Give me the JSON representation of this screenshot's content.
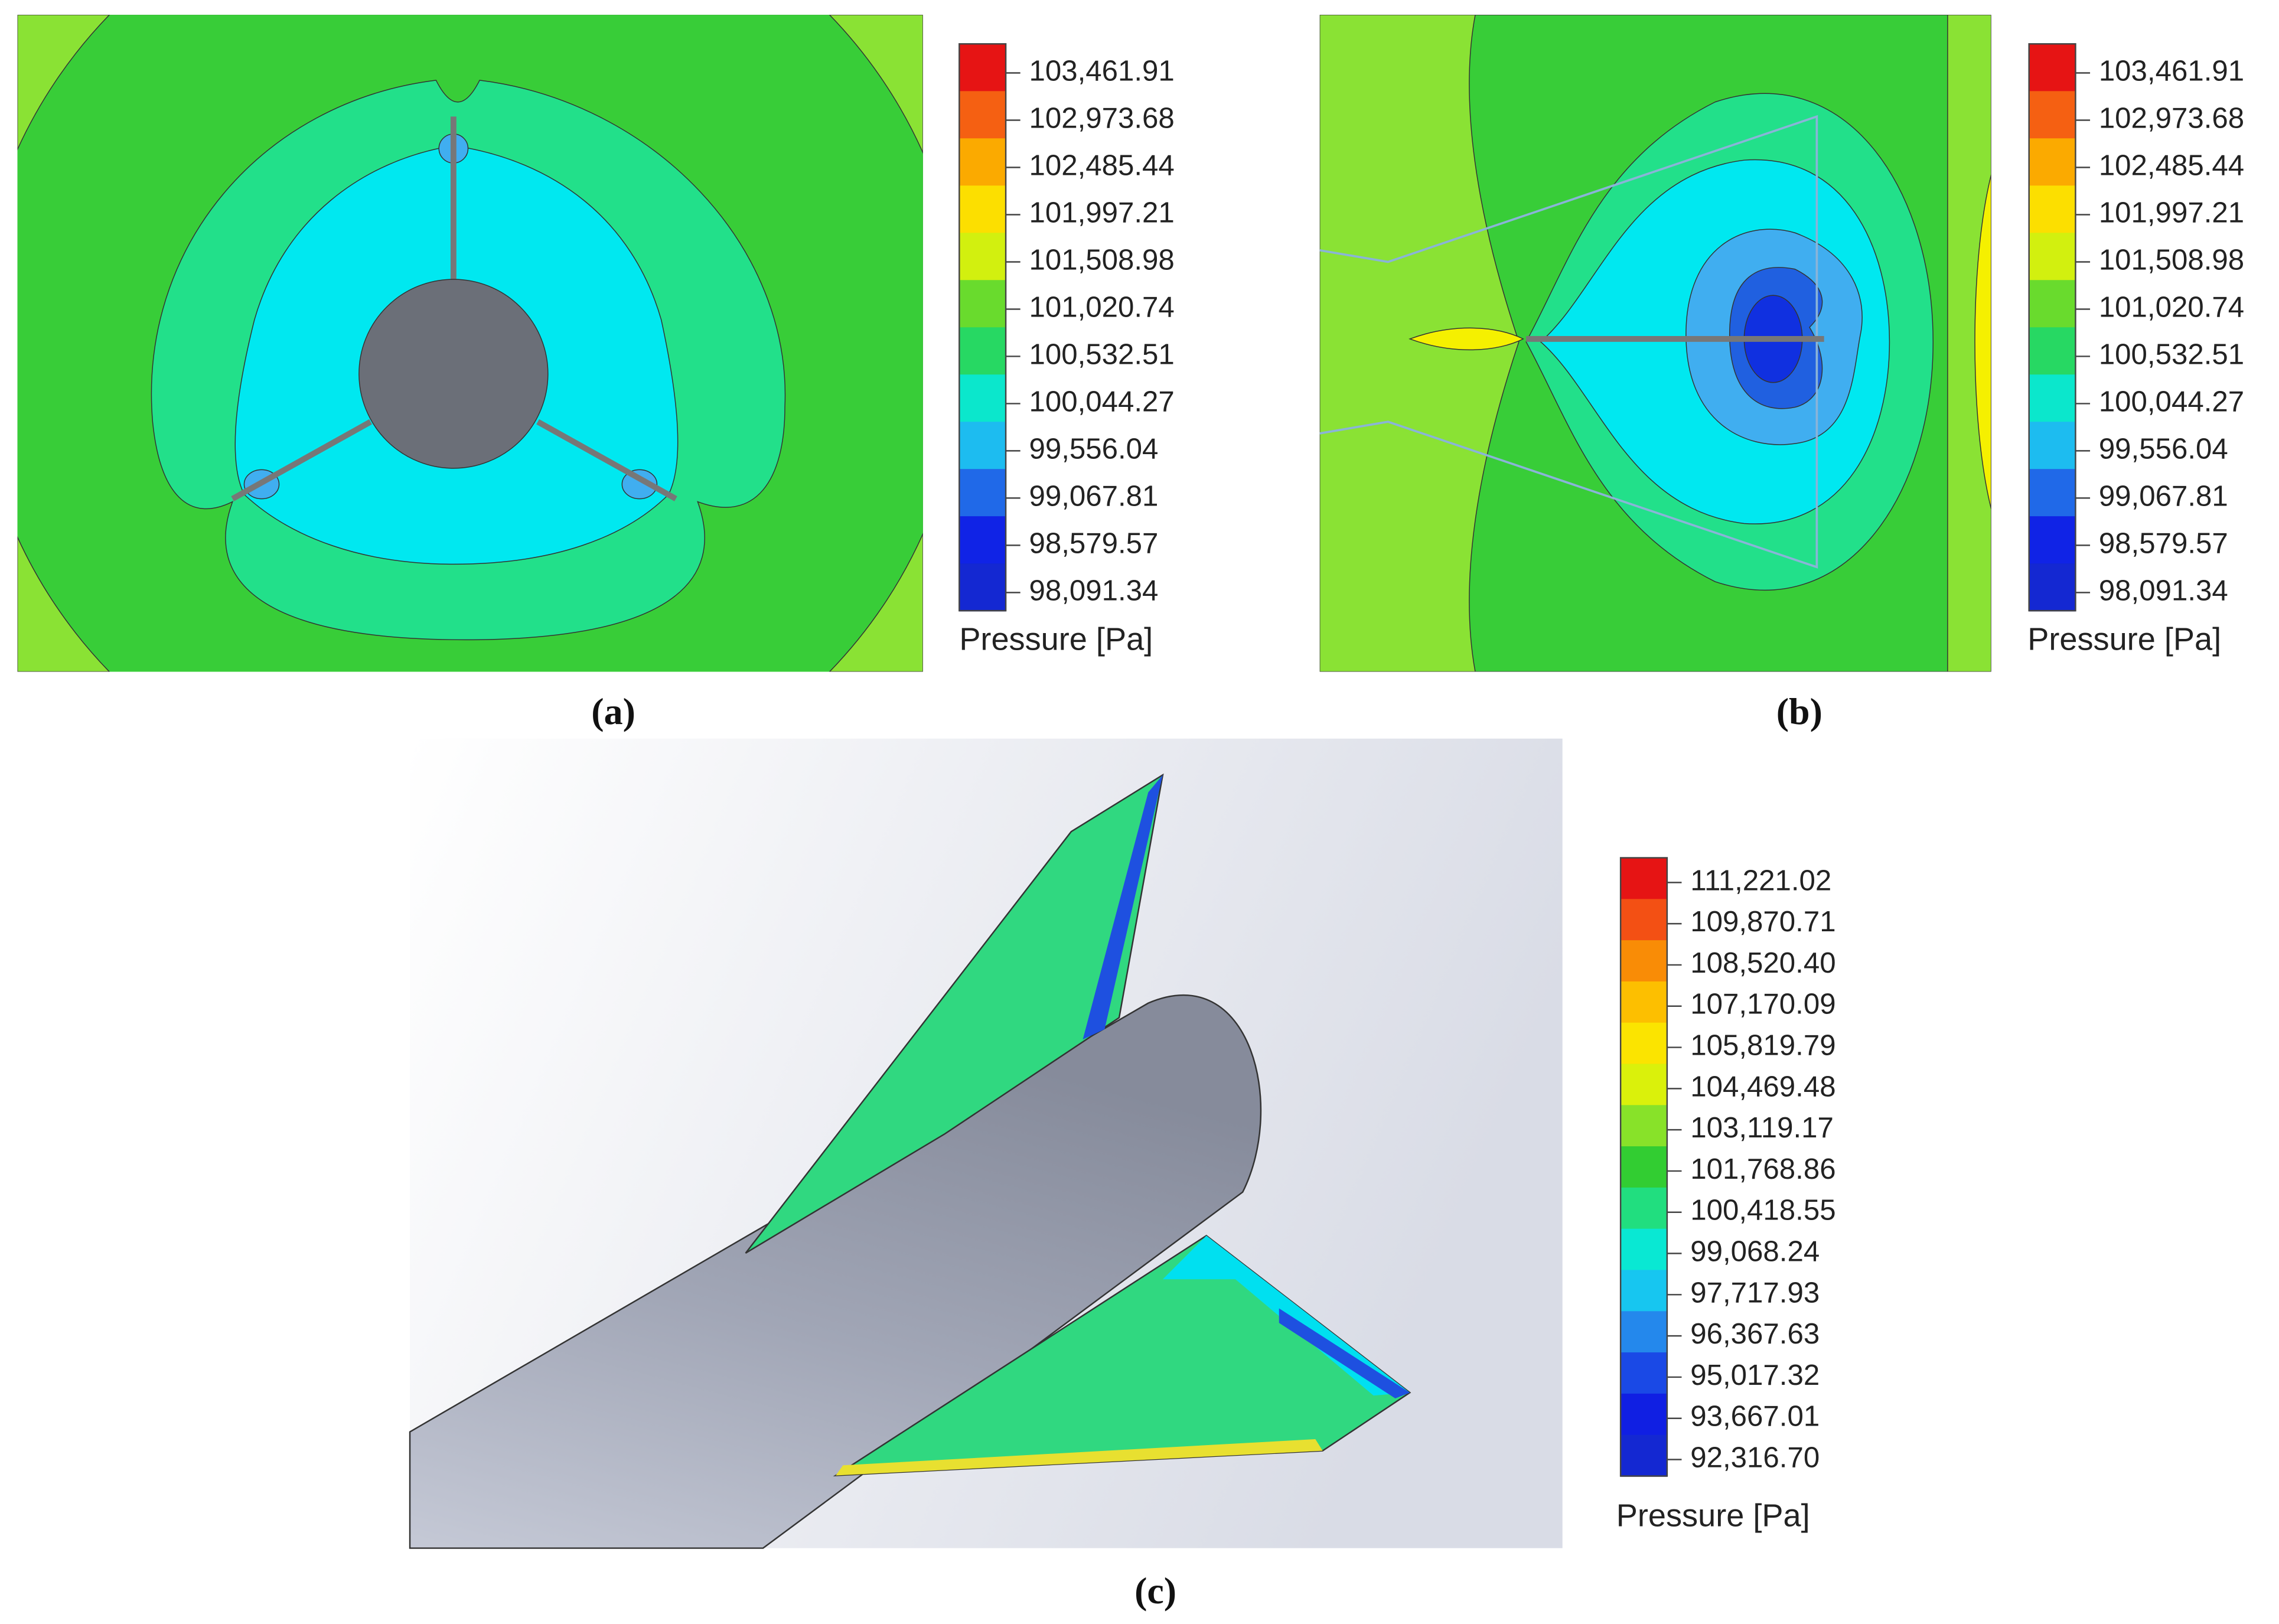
{
  "panels": [
    {
      "label": "(a)",
      "legend": {
        "title": "Pressure [Pa]",
        "labels": [
          "103,461.91",
          "102,973.68",
          "102,485.44",
          "101,997.21",
          "101,508.98",
          "101,020.74",
          "100,532.51",
          "100,044.27",
          "99,556.04",
          "99,067.81",
          "98,579.57",
          "98,091.34"
        ]
      }
    },
    {
      "label": "(b)",
      "legend": {
        "title": "Pressure [Pa]",
        "labels": [
          "103,461.91",
          "102,973.68",
          "102,485.44",
          "101,997.21",
          "101,508.98",
          "101,020.74",
          "100,532.51",
          "100,044.27",
          "99,556.04",
          "99,067.81",
          "98,579.57",
          "98,091.34"
        ]
      }
    },
    {
      "label": "(c)",
      "legend": {
        "title": "Pressure [Pa]",
        "labels": [
          "111,221.02",
          "109,870.71",
          "108,520.40",
          "107,170.09",
          "105,819.79",
          "104,469.48",
          "103,119.17",
          "101,768.86",
          "100,418.55",
          "99,068.24",
          "97,717.93",
          "96,367.63",
          "95,017.32",
          "93,667.01",
          "92,316.70"
        ]
      }
    }
  ]
}
